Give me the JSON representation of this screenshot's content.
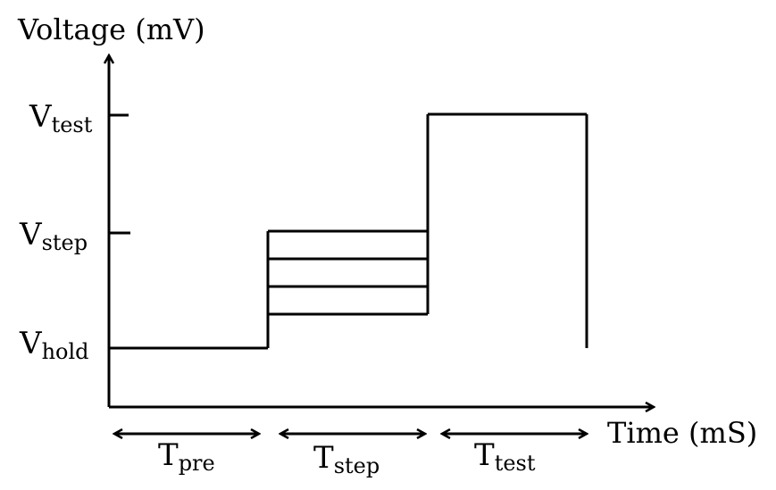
{
  "axes": {
    "y_title": "Voltage (mV)",
    "x_title": "Time (mS)"
  },
  "y_levels": [
    {
      "key": "test",
      "main": "V",
      "sub": "test"
    },
    {
      "key": "step",
      "main": "V",
      "sub": "step"
    },
    {
      "key": "hold",
      "main": "V",
      "sub": "hold"
    }
  ],
  "intervals": [
    {
      "key": "pre",
      "main": "T",
      "sub": "pre"
    },
    {
      "key": "step",
      "main": "T",
      "sub": "step"
    },
    {
      "key": "test",
      "main": "T",
      "sub": "test"
    }
  ],
  "step_count": 4,
  "colors": {
    "stroke": "#000000",
    "background": "#ffffff"
  }
}
